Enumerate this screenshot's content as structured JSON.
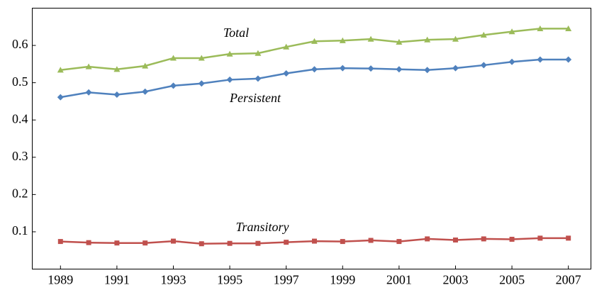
{
  "chart_data": {
    "type": "line",
    "x": [
      1989,
      1990,
      1991,
      1992,
      1993,
      1994,
      1995,
      1996,
      1997,
      1998,
      1999,
      2000,
      2001,
      2002,
      2003,
      2004,
      2005,
      2006,
      2007
    ],
    "series": [
      {
        "name": "Total",
        "color": "#9bbb59",
        "marker": "triangle",
        "values": [
          0.534,
          0.543,
          0.536,
          0.545,
          0.566,
          0.566,
          0.577,
          0.579,
          0.596,
          0.611,
          0.613,
          0.617,
          0.609,
          0.615,
          0.617,
          0.628,
          0.637,
          0.645,
          0.645
        ]
      },
      {
        "name": "Persistent",
        "color": "#4f81bd",
        "marker": "diamond",
        "values": [
          0.461,
          0.474,
          0.468,
          0.476,
          0.492,
          0.498,
          0.508,
          0.511,
          0.525,
          0.536,
          0.539,
          0.538,
          0.536,
          0.534,
          0.539,
          0.547,
          0.556,
          0.562,
          0.562
        ]
      },
      {
        "name": "Transitory",
        "color": "#c0504d",
        "marker": "square",
        "values": [
          0.074,
          0.071,
          0.07,
          0.07,
          0.075,
          0.068,
          0.069,
          0.069,
          0.072,
          0.075,
          0.074,
          0.077,
          0.074,
          0.081,
          0.078,
          0.081,
          0.08,
          0.083,
          0.083
        ]
      }
    ],
    "xlim": [
      1988,
      2007.8
    ],
    "xticks": [
      1989,
      1991,
      1993,
      1995,
      1997,
      1999,
      2001,
      2003,
      2005,
      2007
    ],
    "ylim": [
      0,
      0.7
    ],
    "yticks": [
      0.1,
      0.2,
      0.3,
      0.4,
      0.5,
      0.6
    ]
  }
}
